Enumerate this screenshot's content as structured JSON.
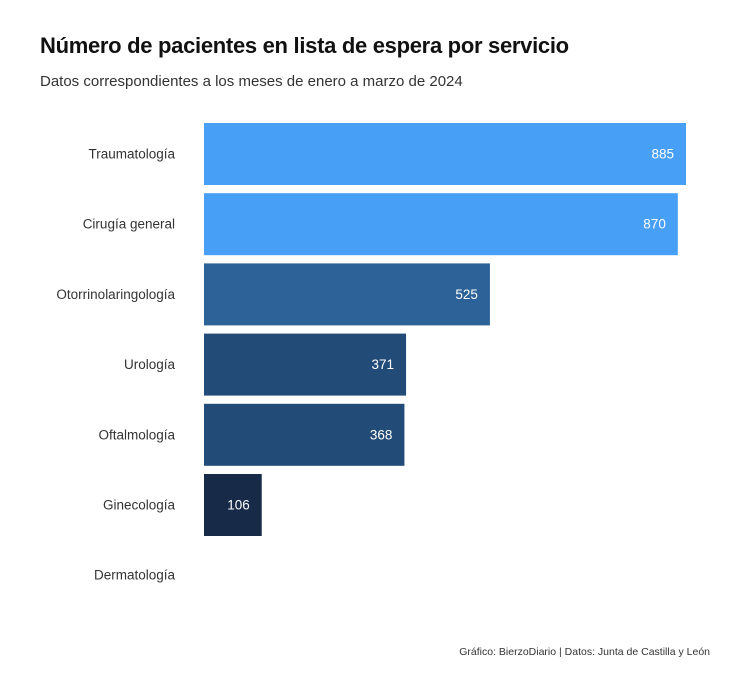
{
  "chart_data": {
    "type": "bar",
    "orientation": "horizontal",
    "title": "Número de pacientes en lista de espera por servicio",
    "subtitle": "Datos correspondientes a los meses de enero a marzo de 2024",
    "categories": [
      "Traumatología",
      "Cirugía general",
      "Otorrinolaringología",
      "Urología",
      "Oftalmología",
      "Ginecología",
      "Dermatología"
    ],
    "values": [
      885,
      870,
      525,
      371,
      368,
      106,
      0
    ],
    "data_labels": [
      "885",
      "870",
      "525",
      "371",
      "368",
      "106",
      ""
    ],
    "bar_colors": [
      "#479ff6",
      "#479ff6",
      "#2c6297",
      "#234b77",
      "#234b77",
      "#172b49",
      "#172b49"
    ],
    "xlim": [
      0,
      885
    ],
    "grid": false,
    "legend": "none",
    "caption": "Gráfico: BierzoDiario | Datos: Junta de Castilla y León"
  }
}
